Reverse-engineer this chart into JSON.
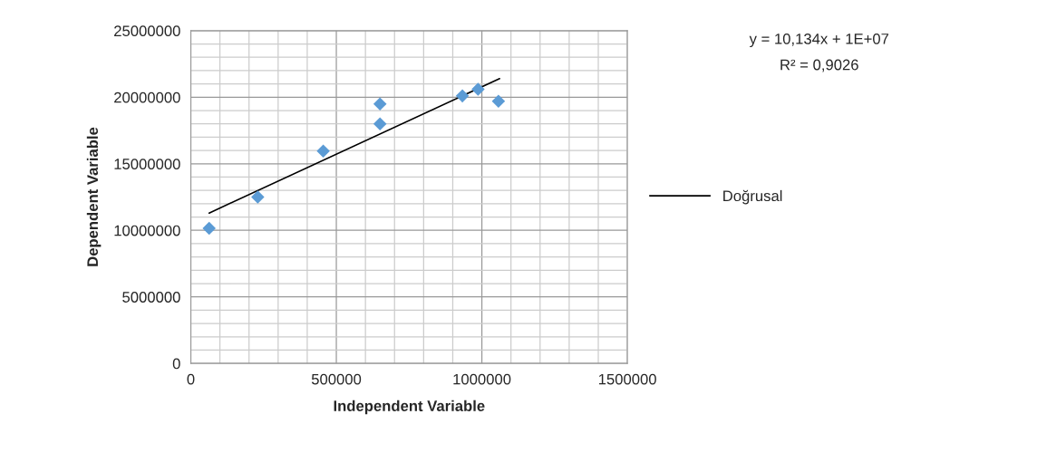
{
  "chart_data": {
    "type": "scatter",
    "xlabel": "Independent Variable",
    "ylabel": "Dependent Variable",
    "series": [
      {
        "color": "#5b9bd5",
        "marker": "diamond",
        "x": [
          63000,
          230000,
          455000,
          650000,
          650000,
          933000,
          987000,
          1057000
        ],
        "values": [
          10150000,
          12500000,
          15950000,
          18000000,
          19500000,
          20100000,
          20600000,
          19700000
        ]
      },
      {
        "type": "line",
        "name": "Doğrusal",
        "color": "#000000",
        "line_style": "solid",
        "x": [
          63000,
          1061000
        ],
        "values": [
          11300000,
          21400000
        ]
      }
    ],
    "xlim": [
      0,
      1500000
    ],
    "xticks": [
      0,
      500000,
      1000000,
      1500000
    ],
    "ylim": [
      0,
      25000000
    ],
    "yticks": [
      0,
      5000000,
      10000000,
      15000000,
      20000000,
      25000000
    ],
    "grid": true,
    "legend": "right",
    "annotations": [
      "y = 10,134x + 1E+07",
      "R² = 0,9026"
    ]
  }
}
